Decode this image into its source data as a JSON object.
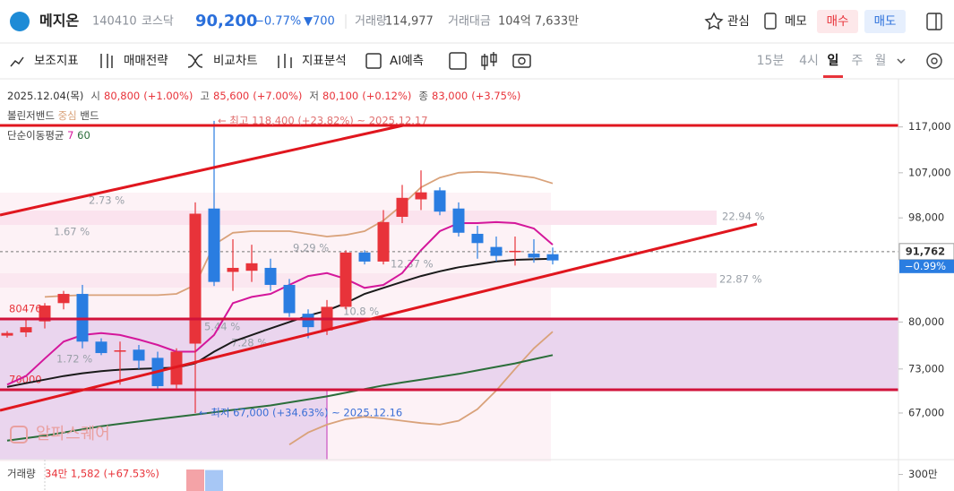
{
  "header": {
    "name": "메지온",
    "code": "140410",
    "market": "코스닥",
    "price": "90,200",
    "change_pct": "−0.77%",
    "change": "▼700",
    "volume_label": "거래량",
    "volume": "114,977",
    "amount_label": "거래대금",
    "amount": "104억 7,633만",
    "buttons": [
      "관심",
      "메모",
      "매수",
      "매도"
    ]
  },
  "toolbar": {
    "tools": [
      "보조지표",
      "매매전략",
      "비교차트",
      "지표분석",
      "AI예측"
    ],
    "timeframes": [
      "15분",
      "4시",
      "일",
      "주",
      "월"
    ],
    "active_timeframe": "일"
  },
  "chart_data": {
    "type": "candlestick",
    "info": {
      "date": "2025.12.04(목)",
      "items": [
        {
          "label": "시",
          "value": "80,800",
          "pct": "(+1.00%)"
        },
        {
          "label": "고",
          "value": "85,600",
          "pct": "(+7.00%)"
        },
        {
          "label": "저",
          "value": "80,100",
          "pct": "(+0.12%)"
        },
        {
          "label": "종",
          "value": "83,000",
          "pct": "(+3.75%)"
        }
      ]
    },
    "legend": {
      "bollinger": "볼린저밴드",
      "center": "중심",
      "band": "밴드",
      "ma": "단순이동평균",
      "ma_periods": [
        7,
        60
      ]
    },
    "yscale": "log",
    "ylim": [
      61500,
      127600
    ],
    "yticks": [
      {
        "value": 117000,
        "label": "117,000"
      },
      {
        "value": 107000,
        "label": "107,000"
      },
      {
        "value": 98000,
        "label": "98,000"
      },
      {
        "value": 80000,
        "label": "80,000"
      },
      {
        "value": 73000,
        "label": "73,000"
      },
      {
        "value": 67000,
        "label": "67,000"
      }
    ],
    "grid": false,
    "up_color": "#e8333a",
    "down_color": "#2a7de1",
    "categories": [
      null,
      null,
      null,
      null,
      null,
      null,
      null,
      null,
      null,
      null,
      null,
      null,
      null,
      null,
      null,
      null,
      null,
      null,
      null,
      null,
      null,
      null,
      null,
      null,
      null,
      null,
      null,
      null,
      null,
      null
    ],
    "open": [
      77900,
      78400,
      80100,
      83000,
      84500,
      77000,
      75500,
      75800,
      74600,
      70800,
      76700,
      99800,
      88200,
      88400,
      88900,
      86000,
      81300,
      78700,
      82400,
      91600,
      90000,
      98200,
      101600,
      103400,
      99800,
      95000,
      92600,
      91700,
      91400,
      91300
    ],
    "high": [
      78600,
      80500,
      83000,
      85000,
      86000,
      77500,
      77000,
      76500,
      75500,
      76000,
      101000,
      118400,
      94000,
      93000,
      90500,
      87000,
      82000,
      83500,
      92000,
      92000,
      99500,
      104500,
      107500,
      104000,
      101000,
      96500,
      94500,
      94500,
      94000,
      92500
    ],
    "low": [
      77600,
      77700,
      79000,
      82000,
      76000,
      75000,
      70800,
      73000,
      70000,
      70300,
      67000,
      85800,
      85000,
      86500,
      85000,
      80800,
      77500,
      78000,
      82000,
      89500,
      89500,
      97000,
      99500,
      98500,
      94500,
      90500,
      90000,
      89300,
      89800,
      89500
    ],
    "close": [
      78300,
      79200,
      82600,
      84500,
      77000,
      75300,
      75700,
      74200,
      70600,
      75500,
      98800,
      86500,
      88900,
      89700,
      86000,
      81400,
      79200,
      82400,
      91600,
      90000,
      97200,
      101900,
      103000,
      99200,
      95200,
      93300,
      91000,
      91900,
      90700,
      90200
    ],
    "overlays": [
      {
        "color": "#1a1a1a",
        "values": [
          70500,
          71000,
          71500,
          72000,
          72400,
          72700,
          72900,
          73000,
          73100,
          73200,
          73800,
          75500,
          77000,
          78000,
          79000,
          80000,
          81000,
          81800,
          83000,
          84500,
          85500,
          86500,
          87500,
          88300,
          89000,
          89500,
          90000,
          90300,
          90400,
          90500
        ]
      },
      {
        "color": "#d9a27a",
        "values": [
          null,
          null,
          84000,
          84200,
          84300,
          84300,
          84300,
          84300,
          84300,
          84500,
          86000,
          93000,
          95200,
          95500,
          95500,
          95500,
          95000,
          94500,
          94800,
          95500,
          97500,
          100500,
          104000,
          106000,
          107000,
          107200,
          107000,
          106500,
          106000,
          104800
        ]
      },
      {
        "color": "#d9a27a",
        "values": [
          null,
          null,
          null,
          null,
          null,
          null,
          null,
          null,
          null,
          null,
          null,
          null,
          null,
          null,
          null,
          63000,
          64500,
          65500,
          66200,
          66500,
          66300,
          66000,
          65700,
          65500,
          66000,
          67500,
          70000,
          73000,
          76000,
          78500
        ]
      },
      {
        "color": "#d4179b",
        "values": [
          70800,
          72000,
          74500,
          77000,
          78000,
          78300,
          78000,
          77300,
          76500,
          75500,
          75500,
          78000,
          83000,
          84000,
          84500,
          86000,
          87500,
          88000,
          87000,
          85500,
          86000,
          88000,
          92000,
          95500,
          97000,
          97000,
          97200,
          97000,
          96000,
          93000
        ]
      },
      {
        "color": "#2b6e3a",
        "values": [
          63500,
          63800,
          64100,
          64500,
          64900,
          65300,
          65600,
          65900,
          66200,
          66500,
          66800,
          67100,
          67400,
          67700,
          68000,
          68400,
          68800,
          69200,
          69700,
          70200,
          70700,
          71100,
          71500,
          71900,
          72300,
          72800,
          73300,
          73800,
          74400,
          75000
        ]
      }
    ],
    "last_price": {
      "value": 91762,
      "label": "91,762",
      "change": "−0.99%"
    },
    "high_annotation": "← 최고 118,400 (+23.82%) ~ 2025.12.17",
    "low_annotation": "← 최저 67,000 (+34.63%) ~ 2025.12.16",
    "labels": [
      "2.73 %",
      "1.67 %",
      "22.94 %",
      "22.87 %",
      "9.29 %",
      "12.37 %",
      "10.8 %",
      "5.44 %",
      "7.28 %",
      "1.72 %",
      "80476",
      "70000"
    ],
    "watermark": "알파스퀘어",
    "volume": {
      "label": "거래량",
      "value_text": "34만 1,582 (+67.53%)",
      "color_up": "#f4a3a7",
      "color_down": "#a7c7f5",
      "values": [
        null,
        null,
        null,
        null,
        null,
        null,
        null,
        null,
        null,
        null,
        3900000,
        3800000,
        null,
        null,
        null,
        null,
        null,
        null,
        null,
        null,
        null,
        null,
        null,
        null,
        null,
        null,
        null,
        null,
        null,
        null
      ],
      "ylim": [
        0,
        3900000
      ],
      "yticks": [
        {
          "value": 3000000,
          "label": "300만"
        }
      ]
    }
  }
}
